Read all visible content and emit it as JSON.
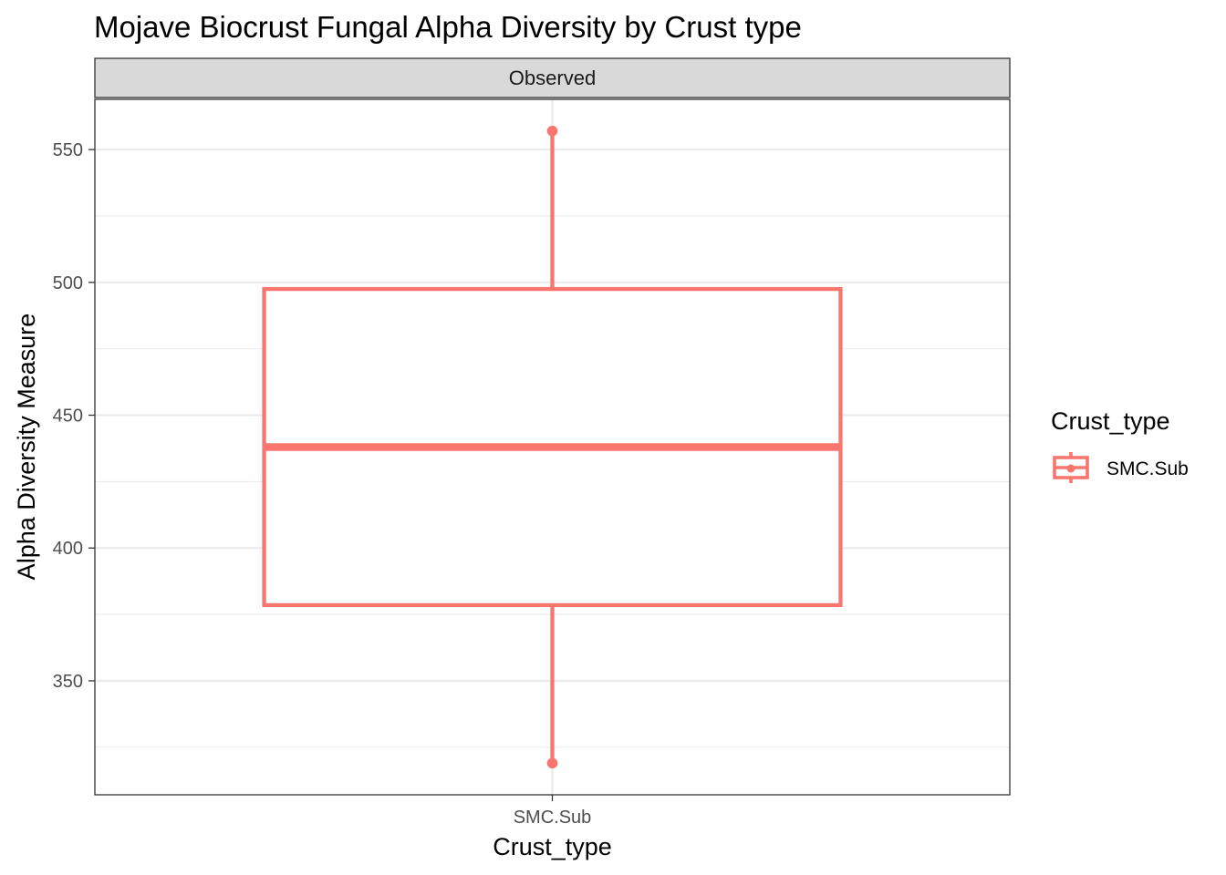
{
  "chart_data": {
    "type": "boxplot",
    "title": "Mojave Biocrust Fungal Alpha Diversity by Crust type",
    "facet": "Observed",
    "xlabel": "Crust_type",
    "ylabel": "Alpha Diversity Measure",
    "categories": [
      "SMC.Sub"
    ],
    "boxes": [
      {
        "category": "SMC.Sub",
        "min": 319,
        "q1": 378.5,
        "median": 438,
        "q3": 497.5,
        "max": 557,
        "color": "#F8766D"
      }
    ],
    "points": [
      {
        "category": "SMC.Sub",
        "y": 557
      },
      {
        "category": "SMC.Sub",
        "y": 319
      }
    ],
    "yticks": [
      350,
      400,
      450,
      500,
      550
    ],
    "ylim": [
      307.1,
      568.9
    ],
    "grid": true,
    "legend": {
      "title": "Crust_type",
      "placement": "right",
      "entries": [
        {
          "label": "SMC.Sub",
          "color": "#F8766D"
        }
      ]
    }
  }
}
